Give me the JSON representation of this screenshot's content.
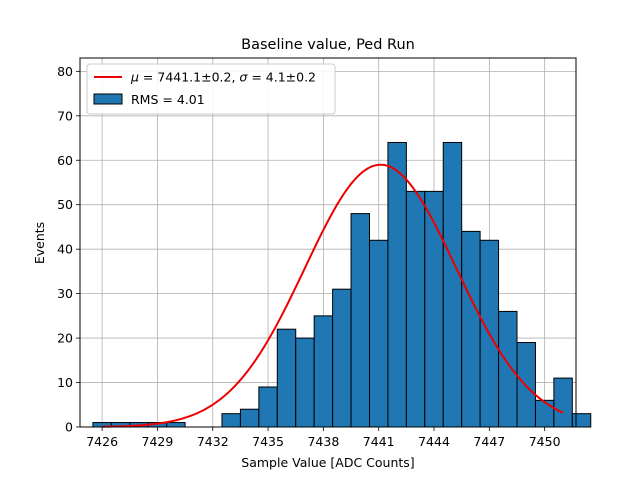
{
  "chart_data": {
    "type": "bar",
    "title": "Baseline value, Ped Run",
    "xlabel": "Sample Value [ADC Counts]",
    "ylabel": "Events",
    "xlim": [
      7424.8,
      7451.7
    ],
    "ylim": [
      0,
      83
    ],
    "xticks": [
      7426,
      7429,
      7432,
      7435,
      7438,
      7441,
      7444,
      7447,
      7450
    ],
    "yticks": [
      0,
      10,
      20,
      30,
      40,
      50,
      60,
      70,
      80
    ],
    "grid": true,
    "legend_position": "top-left",
    "bins": {
      "x_start": 7425.5,
      "bin_width": 1,
      "counts": [
        1,
        1,
        1,
        1,
        1,
        0,
        0,
        3,
        4,
        9,
        22,
        20,
        25,
        31,
        48,
        42,
        64,
        53,
        53,
        64,
        44,
        42,
        26,
        19,
        6,
        11,
        3
      ]
    },
    "series": [
      {
        "name": "$\\mu = 7441.1\\pm0.2$, $\\sigma = 4.1\\pm0.2$",
        "legend_mu": "μ",
        "legend_text_1": " = 7441.1±0.2, ",
        "legend_sigma": "σ",
        "legend_text_2": " = 4.1±0.2",
        "type": "line",
        "fit": "gaussian",
        "mu": 7441.1,
        "sigma": 4.1,
        "amplitude": 59,
        "x_range": [
          7426,
          7451
        ],
        "color": "#ee0000"
      },
      {
        "name": "RMS = 4.01",
        "type": "histogram",
        "color": "#1f77b4",
        "edgecolor": "#000000"
      }
    ]
  }
}
